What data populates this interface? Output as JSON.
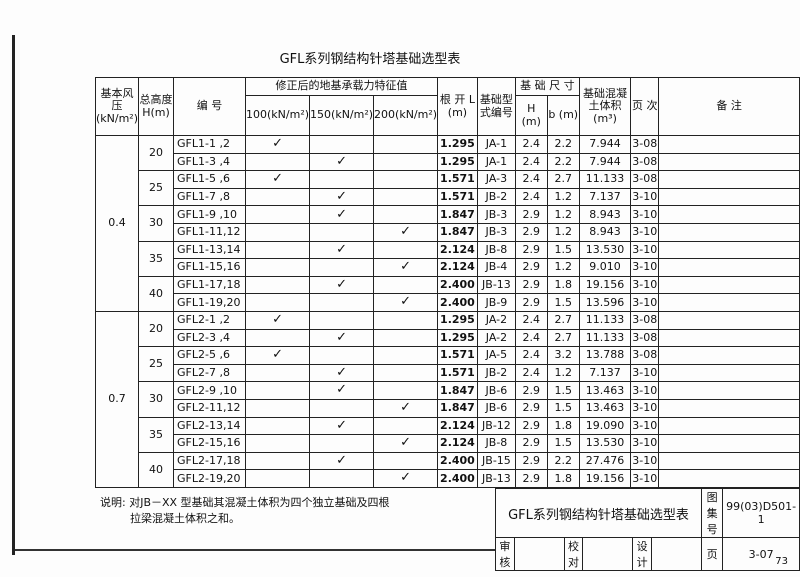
{
  "title": "GFL系列钢结构针塔基础选型表",
  "header": {
    "wind": "基本风压(kN/m²)",
    "height": "总高度H(m)",
    "code": "编 号",
    "capacity": "修正后的地基承载力特征值",
    "c100": "100(kN/m²)",
    "c150": "150(kN/m²)",
    "c200": "200(kN/m²)",
    "root": "根 开 L (m)",
    "type": "基础型式编号",
    "size": "基 础 尺 寸",
    "h": "H (m)",
    "b": "b (m)",
    "vol": "基础混凝土体积(m³)",
    "page": "页 次",
    "remark": "备 注"
  },
  "check_mark": "✓",
  "groups": [
    {
      "wind": "0.4",
      "heights": [
        {
          "h": "20",
          "rows": [
            {
              "code": "GFL1-1 ,2",
              "cap": 100,
              "L": "1.295",
              "type": "JA-1",
              "H": "2.4",
              "b": "2.2",
              "vol": "7.944",
              "page": "3-08"
            },
            {
              "code": "GFL1-3 ,4",
              "cap": 150,
              "L": "1.295",
              "type": "JA-1",
              "H": "2.4",
              "b": "2.2",
              "vol": "7.944",
              "page": "3-08"
            }
          ]
        },
        {
          "h": "25",
          "rows": [
            {
              "code": "GFL1-5 ,6",
              "cap": 100,
              "L": "1.571",
              "type": "JA-3",
              "H": "2.4",
              "b": "2.7",
              "vol": "11.133",
              "page": "3-08"
            },
            {
              "code": "GFL1-7 ,8",
              "cap": 150,
              "L": "1.571",
              "type": "JB-2",
              "H": "2.4",
              "b": "1.2",
              "vol": "7.137",
              "page": "3-10"
            }
          ]
        },
        {
          "h": "30",
          "rows": [
            {
              "code": "GFL1-9 ,10",
              "cap": 150,
              "L": "1.847",
              "type": "JB-3",
              "H": "2.9",
              "b": "1.2",
              "vol": "8.943",
              "page": "3-10"
            },
            {
              "code": "GFL1-11,12",
              "cap": 200,
              "L": "1.847",
              "type": "JB-3",
              "H": "2.9",
              "b": "1.2",
              "vol": "8.943",
              "page": "3-10"
            }
          ]
        },
        {
          "h": "35",
          "rows": [
            {
              "code": "GFL1-13,14",
              "cap": 150,
              "L": "2.124",
              "type": "JB-8",
              "H": "2.9",
              "b": "1.5",
              "vol": "13.530",
              "page": "3-10"
            },
            {
              "code": "GFL1-15,16",
              "cap": 200,
              "L": "2.124",
              "type": "JB-4",
              "H": "2.9",
              "b": "1.2",
              "vol": "9.010",
              "page": "3-10"
            }
          ]
        },
        {
          "h": "40",
          "rows": [
            {
              "code": "GFL1-17,18",
              "cap": 150,
              "L": "2.400",
              "type": "JB-13",
              "H": "2.9",
              "b": "1.8",
              "vol": "19.156",
              "page": "3-10"
            },
            {
              "code": "GFL1-19,20",
              "cap": 200,
              "L": "2.400",
              "type": "JB-9",
              "H": "2.9",
              "b": "1.5",
              "vol": "13.596",
              "page": "3-10"
            }
          ]
        }
      ]
    },
    {
      "wind": "0.7",
      "heights": [
        {
          "h": "20",
          "rows": [
            {
              "code": "GFL2-1 ,2",
              "cap": 100,
              "L": "1.295",
              "type": "JA-2",
              "H": "2.4",
              "b": "2.7",
              "vol": "11.133",
              "page": "3-08"
            },
            {
              "code": "GFL2-3 ,4",
              "cap": 150,
              "L": "1.295",
              "type": "JA-2",
              "H": "2.4",
              "b": "2.7",
              "vol": "11.133",
              "page": "3-08"
            }
          ]
        },
        {
          "h": "25",
          "rows": [
            {
              "code": "GFL2-5 ,6",
              "cap": 100,
              "L": "1.571",
              "type": "JA-5",
              "H": "2.4",
              "b": "3.2",
              "vol": "13.788",
              "page": "3-08"
            },
            {
              "code": "GFL2-7 ,8",
              "cap": 150,
              "L": "1.571",
              "type": "JB-2",
              "H": "2.4",
              "b": "1.2",
              "vol": "7.137",
              "page": "3-10"
            }
          ]
        },
        {
          "h": "30",
          "rows": [
            {
              "code": "GFL2-9 ,10",
              "cap": 150,
              "L": "1.847",
              "type": "JB-6",
              "H": "2.9",
              "b": "1.5",
              "vol": "13.463",
              "page": "3-10"
            },
            {
              "code": "GFL2-11,12",
              "cap": 200,
              "L": "1.847",
              "type": "JB-6",
              "H": "2.9",
              "b": "1.5",
              "vol": "13.463",
              "page": "3-10"
            }
          ]
        },
        {
          "h": "35",
          "rows": [
            {
              "code": "GFL2-13,14",
              "cap": 150,
              "L": "2.124",
              "type": "JB-12",
              "H": "2.9",
              "b": "1.8",
              "vol": "19.090",
              "page": "3-10"
            },
            {
              "code": "GFL2-15,16",
              "cap": 200,
              "L": "2.124",
              "type": "JB-8",
              "H": "2.9",
              "b": "1.5",
              "vol": "13.530",
              "page": "3-10"
            }
          ]
        },
        {
          "h": "40",
          "rows": [
            {
              "code": "GFL2-17,18",
              "cap": 150,
              "L": "2.400",
              "type": "JB-15",
              "H": "2.9",
              "b": "2.2",
              "vol": "27.476",
              "page": "3-10"
            },
            {
              "code": "GFL2-19,20",
              "cap": 200,
              "L": "2.400",
              "type": "JB-13",
              "H": "2.9",
              "b": "1.8",
              "vol": "19.156",
              "page": "3-10"
            }
          ]
        }
      ]
    }
  ],
  "note": {
    "line1": "说明: 对JB－XX 型基础其混凝土体积为四个独立基础及四根",
    "line2": "拉梁混凝土体积之和。"
  },
  "titleblock": {
    "title": "GFL系列钢结构针塔基础选型表",
    "atlas_label": "图集号",
    "atlas_no": "99(03)D501-1",
    "review": "审核",
    "check": "校对",
    "design": "设计",
    "page_label": "页",
    "page_no": "3-07"
  },
  "page_number": "73"
}
